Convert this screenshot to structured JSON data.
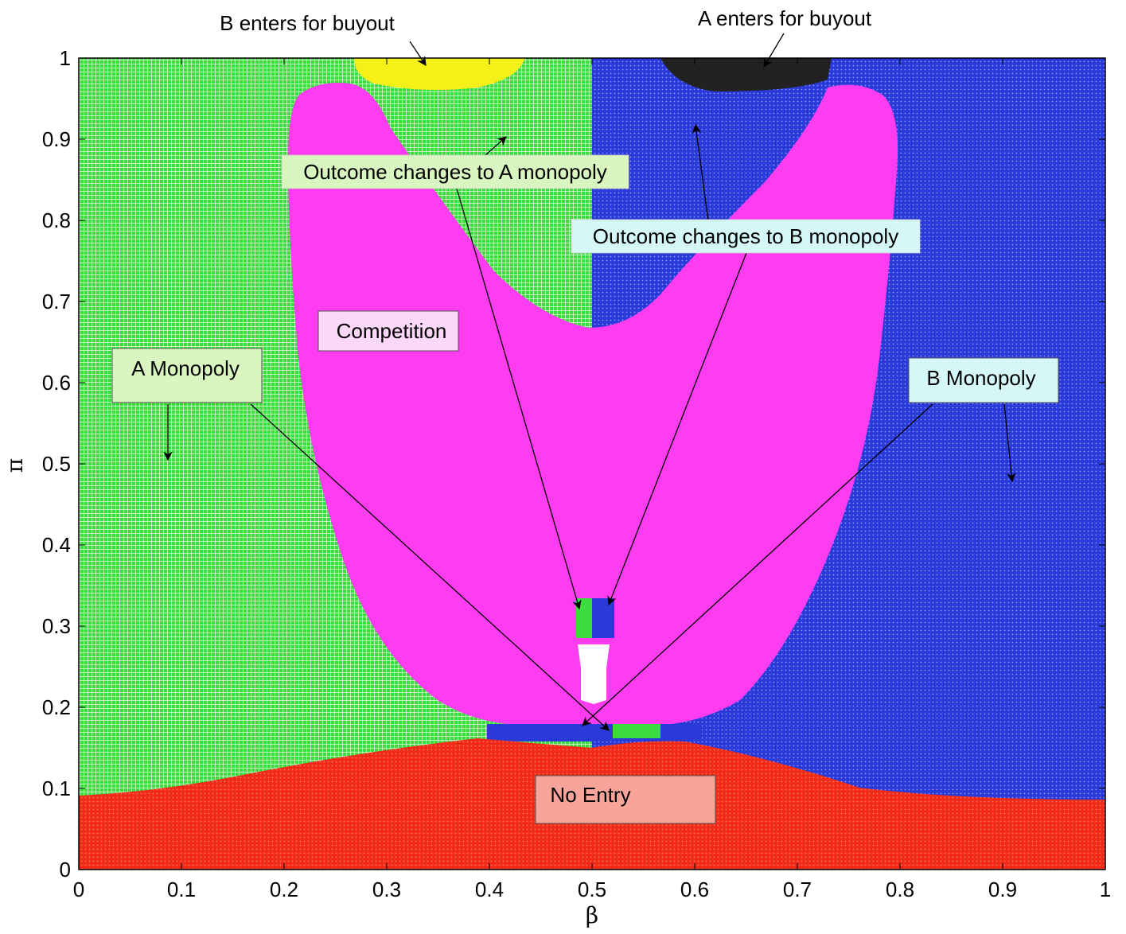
{
  "chart_data": {
    "type": "heatmap",
    "xlabel": "β",
    "ylabel": "π",
    "xlim": [
      0,
      1
    ],
    "ylim": [
      0,
      1
    ],
    "x_ticks": [
      "0",
      "0.1",
      "0.2",
      "0.3",
      "0.4",
      "0.5",
      "0.6",
      "0.7",
      "0.8",
      "0.9",
      "1"
    ],
    "y_ticks": [
      "0",
      "0.1",
      "0.2",
      "0.3",
      "0.4",
      "0.5",
      "0.6",
      "0.7",
      "0.8",
      "0.9",
      "1"
    ],
    "grid": false,
    "regions": [
      {
        "name": "A Monopoly",
        "color": "#3ddc3d"
      },
      {
        "name": "B Monopoly",
        "color": "#2a3ad8"
      },
      {
        "name": "Competition",
        "color": "#ff3cf0"
      },
      {
        "name": "No Entry",
        "color": "#f02a16"
      },
      {
        "name": "B enters for buyout",
        "color": "#f4f018"
      },
      {
        "name": "A enters for buyout",
        "color": "#222222"
      }
    ],
    "annotations": [
      {
        "text": "B enters for buyout",
        "boxed": false
      },
      {
        "text": "A enters for buyout",
        "boxed": false
      },
      {
        "text": "Outcome changes to A monopoly",
        "box_color": "#d9f5c0"
      },
      {
        "text": "Outcome changes to B monopoly",
        "box_color": "#d6f7f7"
      },
      {
        "text": "Competition",
        "box_color": "#fbd7f8"
      },
      {
        "text": "A Monopoly",
        "box_color": "#d9f5c0"
      },
      {
        "text": "B Monopoly",
        "box_color": "#d6f7f7"
      },
      {
        "text": "No Entry",
        "box_color": "#f7a49b"
      }
    ]
  }
}
